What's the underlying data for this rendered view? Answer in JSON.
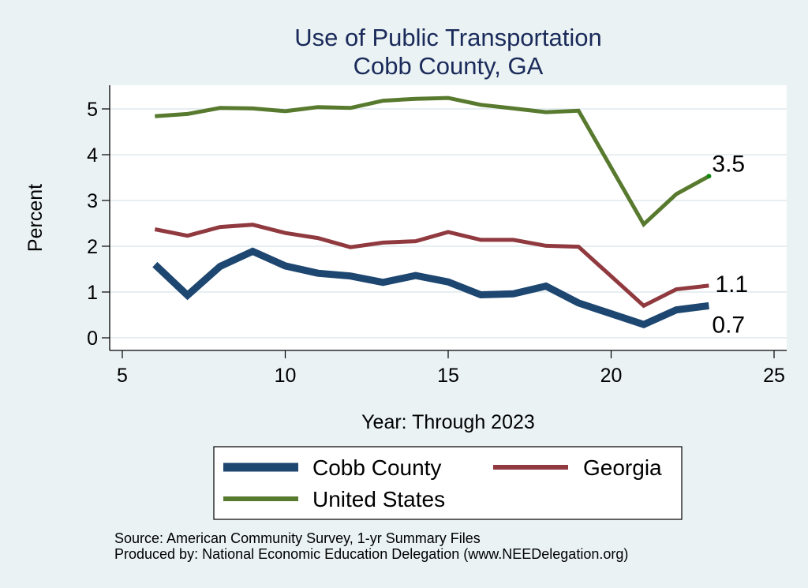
{
  "chart_data": {
    "type": "line",
    "title": "Use of Public Transportation",
    "subtitle": "Cobb County, GA",
    "xlabel": "Year: Through 2023",
    "ylabel": "Percent",
    "xlim": [
      5,
      25
    ],
    "ylim": [
      0,
      5.5
    ],
    "xticks": [
      5,
      10,
      15,
      20,
      25
    ],
    "yticks": [
      0,
      1,
      2,
      3,
      4,
      5
    ],
    "grid": "horizontal",
    "legend_position": "bottom",
    "series": [
      {
        "name": "Cobb County",
        "color": "#1d4670",
        "weight": "thick",
        "x": [
          6,
          7,
          8,
          9,
          10,
          11,
          12,
          13,
          14,
          15,
          16,
          17,
          18,
          19,
          21,
          22,
          23
        ],
        "values": [
          1.6,
          0.93,
          1.56,
          1.89,
          1.57,
          1.41,
          1.35,
          1.21,
          1.36,
          1.22,
          0.94,
          0.96,
          1.13,
          0.76,
          0.29,
          0.61,
          0.7
        ],
        "end_label": "0.7"
      },
      {
        "name": "Georgia",
        "color": "#903a40",
        "weight": "medium",
        "x": [
          6,
          7,
          8,
          9,
          10,
          11,
          12,
          13,
          14,
          15,
          16,
          17,
          18,
          19,
          21,
          22,
          23
        ],
        "values": [
          2.37,
          2.23,
          2.42,
          2.47,
          2.29,
          2.18,
          1.98,
          2.08,
          2.11,
          2.31,
          2.14,
          2.14,
          2.01,
          1.99,
          0.7,
          1.06,
          1.14
        ],
        "end_label": "1.1"
      },
      {
        "name": "United States",
        "color": "#587a2e",
        "weight": "medium",
        "x": [
          6,
          7,
          8,
          9,
          10,
          11,
          12,
          13,
          14,
          15,
          16,
          17,
          18,
          19,
          21,
          22,
          23
        ],
        "values": [
          4.84,
          4.89,
          5.02,
          5.01,
          4.95,
          5.04,
          5.02,
          5.18,
          5.22,
          5.24,
          5.09,
          5.01,
          4.93,
          4.96,
          2.48,
          3.14,
          3.53
        ],
        "end_label": "3.5"
      }
    ],
    "notes": [
      "Source: American Community Survey, 1-yr Summary Files",
      "Produced by: National Economic Education Delegation (www.NEEDelegation.org)"
    ]
  }
}
